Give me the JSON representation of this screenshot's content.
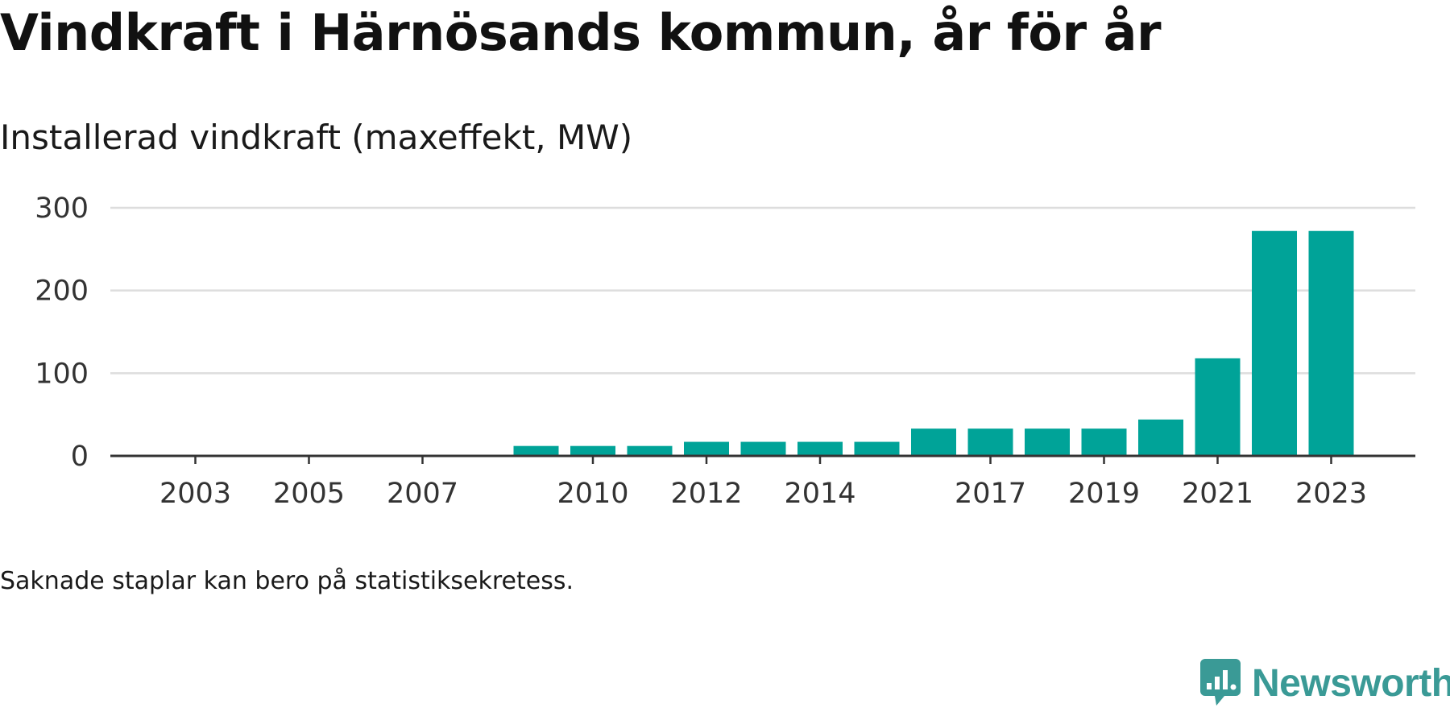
{
  "header": {
    "title": "Vindkraft i Härnösands kommun, år för år",
    "subtitle": "Installerad vindkraft (maxeffekt, MW)"
  },
  "footnote": "Saknade staplar kan bero på statistiksekretess.",
  "brand": {
    "name": "Newsworthy",
    "icon": "newsworthy-logo-icon",
    "color": "#3a9a96"
  },
  "colors": {
    "bar": "#00a398",
    "grid": "#dddddd",
    "axis": "#333333"
  },
  "chart_data": {
    "type": "bar",
    "title": "Vindkraft i Härnösands kommun, år för år",
    "subtitle": "Installerad vindkraft (maxeffekt, MW)",
    "categories": [
      "2002",
      "2003",
      "2004",
      "2005",
      "2006",
      "2007",
      "2008",
      "2009",
      "2010",
      "2011",
      "2012",
      "2013",
      "2014",
      "2015",
      "2016",
      "2017",
      "2018",
      "2019",
      "2020",
      "2021",
      "2022",
      "2023"
    ],
    "x_tick_labels": [
      "2003",
      "2005",
      "2007",
      "2010",
      "2012",
      "2014",
      "2017",
      "2019",
      "2021",
      "2023"
    ],
    "values": [
      null,
      null,
      null,
      null,
      null,
      null,
      null,
      12,
      12,
      12,
      17,
      17,
      17,
      17,
      33,
      33,
      33,
      33,
      44,
      118,
      272,
      272
    ],
    "ylim": [
      0,
      300
    ],
    "yticks": [
      0,
      100,
      200,
      300
    ],
    "grid": true,
    "legend": "none"
  }
}
